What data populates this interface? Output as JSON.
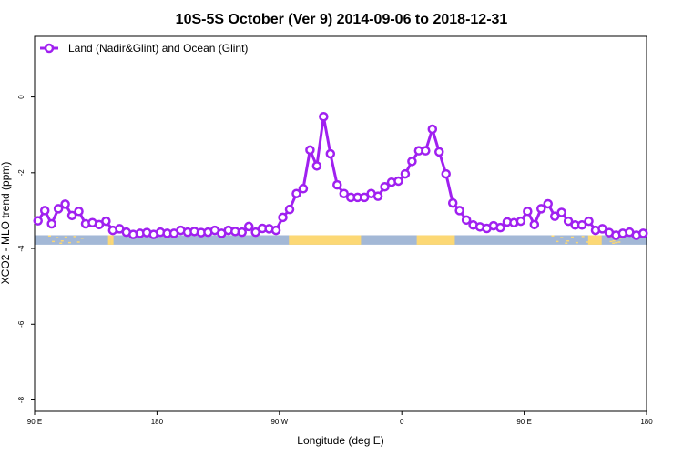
{
  "chart_data": {
    "type": "line",
    "title": "10S-5S October (Ver 9)   2014-09-06 to 2018-12-31",
    "xlabel": "Longitude (deg E)",
    "ylabel": "XCO2 - MLO trend (ppm)",
    "xlim": [
      90,
      540
    ],
    "ylim": [
      -8.3,
      1.6
    ],
    "x_ticks": [
      {
        "value": 90,
        "label": "90 E"
      },
      {
        "value": 180,
        "label": "180"
      },
      {
        "value": 270,
        "label": "90 W"
      },
      {
        "value": 360,
        "label": "0"
      },
      {
        "value": 450,
        "label": "90 E"
      },
      {
        "value": 540,
        "label": "180"
      }
    ],
    "y_ticks": [
      {
        "value": 0,
        "label": "0"
      },
      {
        "value": -2,
        "label": "-2"
      },
      {
        "value": -4,
        "label": "-4"
      },
      {
        "value": -6,
        "label": "-6"
      },
      {
        "value": -8,
        "label": "-8"
      }
    ],
    "legend": {
      "position": "top-left"
    },
    "series": [
      {
        "name": "Land (Nadir&Glint) and Ocean (Glint)",
        "color": "#a020f0",
        "marker": "open-circle",
        "x": [
          92.5,
          97.5,
          102.5,
          107.5,
          112.5,
          117.5,
          122.5,
          127.5,
          132.5,
          137.5,
          142.5,
          147.5,
          152.5,
          157.5,
          162.5,
          167.5,
          172.5,
          177.5,
          182.5,
          187.5,
          192.5,
          197.5,
          202.5,
          207.5,
          212.5,
          217.5,
          222.5,
          227.5,
          232.5,
          237.5,
          242.5,
          247.5,
          252.5,
          257.5,
          262.5,
          267.5,
          272.5,
          277.5,
          282.5,
          287.5,
          292.5,
          297.5,
          302.5,
          307.5,
          312.5,
          317.5,
          322.5,
          327.5,
          332.5,
          337.5,
          342.5,
          347.5,
          352.5,
          357.5,
          362.5,
          367.5,
          372.5,
          377.5,
          382.5,
          387.5,
          392.5,
          397.5,
          402.5,
          407.5,
          412.5,
          417.5,
          422.5,
          427.5,
          432.5,
          437.5,
          442.5,
          447.5,
          452.5,
          457.5,
          462.5,
          467.5,
          472.5,
          477.5,
          482.5,
          487.5,
          492.5,
          497.5,
          502.5,
          507.5,
          512.5,
          517.5,
          522.5,
          527.5,
          532.5,
          537.5
        ],
        "y": [
          -3.27,
          -3.0,
          -3.35,
          -2.95,
          -2.83,
          -3.13,
          -3.02,
          -3.35,
          -3.32,
          -3.37,
          -3.28,
          -3.52,
          -3.48,
          -3.57,
          -3.63,
          -3.6,
          -3.58,
          -3.63,
          -3.57,
          -3.6,
          -3.6,
          -3.52,
          -3.57,
          -3.55,
          -3.58,
          -3.57,
          -3.52,
          -3.6,
          -3.52,
          -3.55,
          -3.57,
          -3.42,
          -3.57,
          -3.47,
          -3.48,
          -3.52,
          -3.18,
          -2.97,
          -2.55,
          -2.42,
          -1.4,
          -1.82,
          -0.52,
          -1.5,
          -2.32,
          -2.55,
          -2.65,
          -2.65,
          -2.65,
          -2.55,
          -2.62,
          -2.37,
          -2.25,
          -2.22,
          -2.03,
          -1.7,
          -1.42,
          -1.42,
          -0.85,
          -1.45,
          -2.03,
          -2.8,
          -3.0,
          -3.25,
          -3.38,
          -3.43,
          -3.47,
          -3.4,
          -3.45,
          -3.3,
          -3.32,
          -3.28,
          -3.02,
          -3.37,
          -2.95,
          -2.82,
          -3.15,
          -3.05,
          -3.28,
          -3.38,
          -3.38,
          -3.28,
          -3.52,
          -3.48,
          -3.58,
          -3.65,
          -3.6,
          -3.57,
          -3.65,
          -3.6
        ]
      }
    ],
    "surface_band": {
      "y_range": [
        -3.65,
        -3.9
      ],
      "ocean_color": "#a3b8d6",
      "land_color": "#fcd875",
      "land_segments": [
        [
          144,
          146
        ],
        [
          146,
          148
        ],
        [
          277,
          330
        ],
        [
          371,
          399
        ],
        [
          497,
          507
        ]
      ],
      "coast_color": "#e5c46a"
    }
  }
}
